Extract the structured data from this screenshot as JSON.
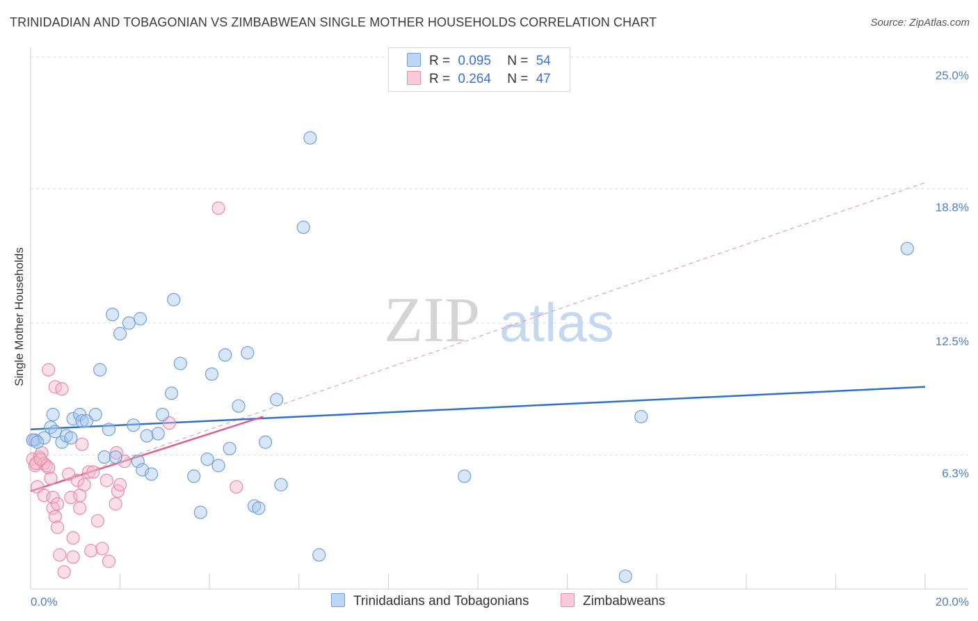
{
  "header": {
    "title": "TRINIDADIAN AND TOBAGONIAN VS ZIMBABWEAN SINGLE MOTHER HOUSEHOLDS CORRELATION CHART",
    "source": "Source: ZipAtlas.com"
  },
  "watermark": {
    "zip": "ZIP",
    "atlas": "atlas"
  },
  "legend": {
    "r_label": "R =",
    "n_label": "N =",
    "series1": {
      "r": "0.095",
      "n": "54"
    },
    "series2": {
      "r": "0.264",
      "n": "47"
    }
  },
  "colors": {
    "blue_fill": "#a9c8ef",
    "blue_stroke": "#6f9fdc",
    "blue_line": "#2b70c9",
    "pink_fill": "#f5b8ca",
    "pink_stroke": "#e889a6",
    "pink_line": "#e05c8a",
    "tick_text": "#4a7fc8",
    "grid": "#dcdcdc"
  },
  "chart_data": {
    "type": "scatter",
    "title": "TRINIDADIAN AND TOBAGONIAN VS ZIMBABWEAN SINGLE MOTHER HOUSEHOLDS CORRELATION CHART",
    "xlabel": "",
    "ylabel": "Single Mother Households",
    "xlim": [
      0,
      20
    ],
    "ylim": [
      0,
      25
    ],
    "x_tick_labels": [
      "0.0%",
      "20.0%"
    ],
    "y_ticks": [
      6.3,
      12.5,
      18.8,
      25.0
    ],
    "y_tick_labels": [
      "6.3%",
      "12.5%",
      "18.8%",
      "25.0%"
    ],
    "grid": true,
    "series": [
      {
        "name": "Trinidadians and Tobagonians",
        "color": "#6f9fdc",
        "trend": {
          "x": [
            0,
            20
          ],
          "y": [
            7.5,
            9.5
          ]
        },
        "points": [
          [
            0.1,
            7.0
          ],
          [
            0.3,
            7.1
          ],
          [
            0.45,
            7.6
          ],
          [
            0.5,
            8.2
          ],
          [
            0.55,
            7.4
          ],
          [
            0.7,
            6.9
          ],
          [
            0.8,
            7.2
          ],
          [
            0.9,
            7.1
          ],
          [
            0.95,
            8.0
          ],
          [
            1.1,
            8.2
          ],
          [
            1.15,
            7.9
          ],
          [
            1.25,
            7.9
          ],
          [
            1.45,
            8.2
          ],
          [
            1.55,
            10.3
          ],
          [
            1.65,
            6.2
          ],
          [
            1.75,
            7.5
          ],
          [
            1.83,
            12.9
          ],
          [
            1.9,
            6.2
          ],
          [
            2.0,
            12.0
          ],
          [
            2.2,
            12.5
          ],
          [
            2.3,
            7.7
          ],
          [
            2.4,
            6.0
          ],
          [
            2.45,
            12.7
          ],
          [
            2.5,
            5.6
          ],
          [
            2.6,
            7.2
          ],
          [
            2.7,
            5.4
          ],
          [
            2.85,
            7.3
          ],
          [
            2.95,
            8.2
          ],
          [
            3.15,
            9.2
          ],
          [
            3.2,
            13.6
          ],
          [
            3.35,
            10.6
          ],
          [
            3.65,
            5.3
          ],
          [
            3.8,
            3.6
          ],
          [
            3.95,
            6.1
          ],
          [
            4.05,
            10.1
          ],
          [
            4.2,
            5.8
          ],
          [
            4.35,
            11.0
          ],
          [
            4.45,
            6.6
          ],
          [
            4.65,
            8.6
          ],
          [
            4.85,
            11.1
          ],
          [
            5.0,
            3.9
          ],
          [
            5.1,
            3.8
          ],
          [
            5.25,
            6.9
          ],
          [
            5.5,
            8.9
          ],
          [
            5.6,
            4.9
          ],
          [
            6.1,
            17.0
          ],
          [
            6.25,
            21.2
          ],
          [
            6.45,
            1.6
          ],
          [
            9.7,
            5.3
          ],
          [
            13.3,
            0.6
          ],
          [
            13.65,
            8.1
          ],
          [
            19.6,
            16.0
          ],
          [
            0.05,
            7.0
          ],
          [
            0.15,
            6.9
          ]
        ]
      },
      {
        "name": "Zimbabweans",
        "color": "#e889a6",
        "trend": {
          "x": [
            0,
            5.2
          ],
          "y": [
            4.6,
            8.1
          ]
        },
        "trend_extended": {
          "x": [
            0,
            20
          ],
          "y": [
            4.6,
            19.1
          ]
        },
        "points": [
          [
            0.05,
            6.1
          ],
          [
            0.1,
            5.8
          ],
          [
            0.15,
            4.8
          ],
          [
            0.2,
            6.2
          ],
          [
            0.25,
            6.4
          ],
          [
            0.3,
            5.9
          ],
          [
            0.3,
            4.4
          ],
          [
            0.35,
            5.8
          ],
          [
            0.4,
            5.7
          ],
          [
            0.4,
            10.3
          ],
          [
            0.45,
            5.2
          ],
          [
            0.5,
            4.3
          ],
          [
            0.5,
            3.8
          ],
          [
            0.55,
            3.4
          ],
          [
            0.55,
            9.5
          ],
          [
            0.6,
            2.9
          ],
          [
            0.6,
            4.0
          ],
          [
            0.65,
            1.6
          ],
          [
            0.7,
            9.4
          ],
          [
            0.75,
            0.8
          ],
          [
            0.85,
            5.4
          ],
          [
            0.9,
            4.3
          ],
          [
            0.95,
            1.5
          ],
          [
            0.95,
            2.4
          ],
          [
            1.05,
            5.1
          ],
          [
            1.1,
            4.4
          ],
          [
            1.1,
            3.8
          ],
          [
            1.15,
            6.8
          ],
          [
            1.2,
            4.9
          ],
          [
            1.3,
            5.5
          ],
          [
            1.35,
            1.8
          ],
          [
            1.4,
            5.5
          ],
          [
            1.5,
            3.2
          ],
          [
            1.6,
            1.9
          ],
          [
            1.7,
            5.1
          ],
          [
            1.75,
            1.3
          ],
          [
            1.9,
            4.0
          ],
          [
            1.92,
            6.4
          ],
          [
            1.95,
            4.6
          ],
          [
            2.0,
            4.9
          ],
          [
            2.1,
            6.0
          ],
          [
            3.1,
            7.8
          ],
          [
            4.2,
            17.9
          ],
          [
            4.6,
            4.8
          ],
          [
            0.12,
            5.9
          ],
          [
            0.22,
            6.1
          ],
          [
            0.05,
            7.0
          ]
        ]
      }
    ]
  },
  "bottom_legend": {
    "item1": "Trinidadians and Tobagonians",
    "item2": "Zimbabweans"
  }
}
